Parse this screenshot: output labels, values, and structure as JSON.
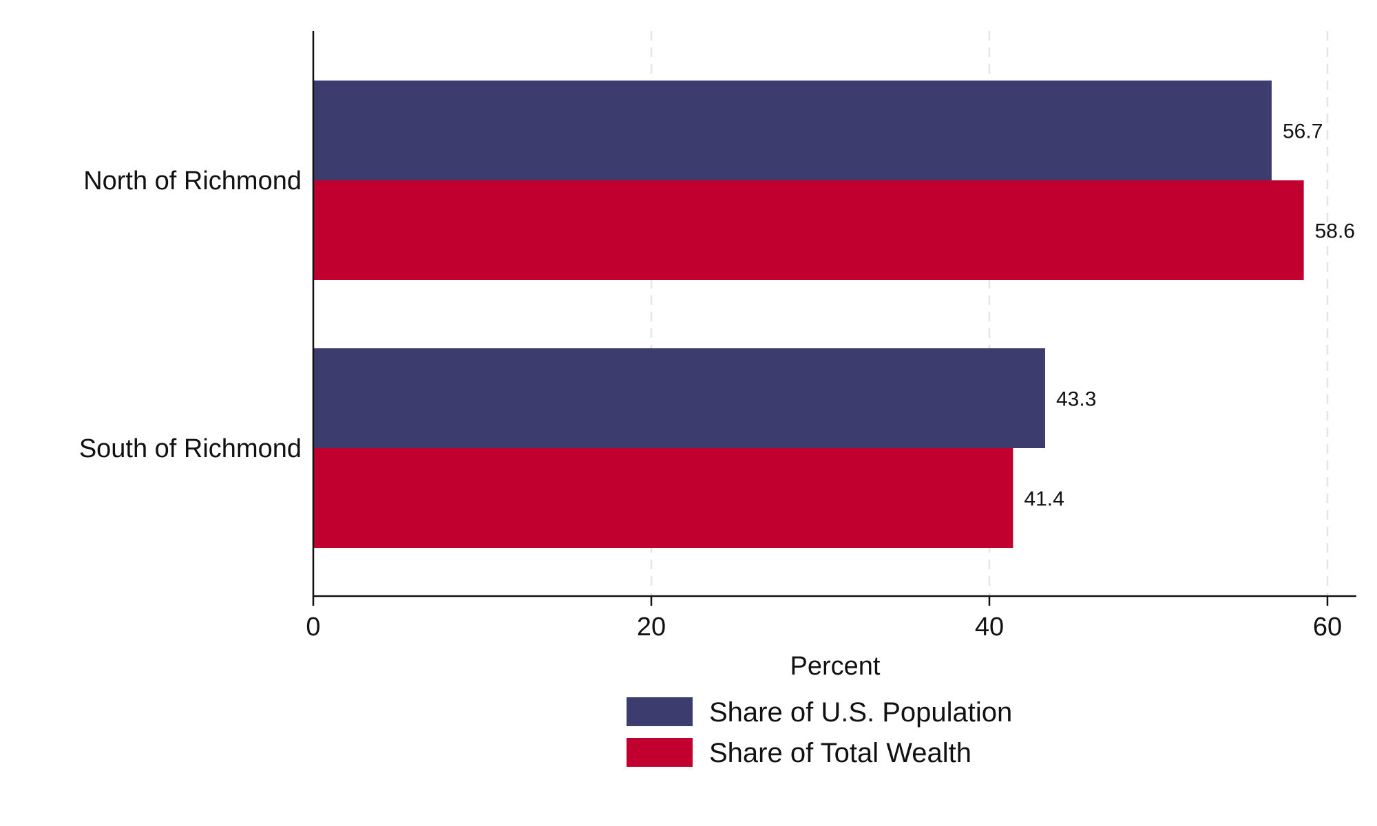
{
  "chart_data": {
    "type": "bar",
    "orientation": "horizontal",
    "categories": [
      "North of Richmond",
      "South of Richmond"
    ],
    "series": [
      {
        "name": "Share of U.S. Population",
        "values": [
          56.7,
          43.3
        ],
        "labels": [
          "56.7",
          "43.3"
        ],
        "color": "#3d3c6e"
      },
      {
        "name": "Share of Total Wealth",
        "values": [
          58.6,
          41.4
        ],
        "labels": [
          "58.6",
          "41.4"
        ],
        "color": "#c20030"
      }
    ],
    "xlabel": "Percent",
    "ylabel": "",
    "xlim": [
      0,
      61.7
    ],
    "xticks": [
      0,
      20,
      40,
      60
    ],
    "xtick_labels": [
      "0",
      "20",
      "40",
      "60"
    ],
    "grid": "vertical dashed",
    "legend_position": "bottom"
  }
}
